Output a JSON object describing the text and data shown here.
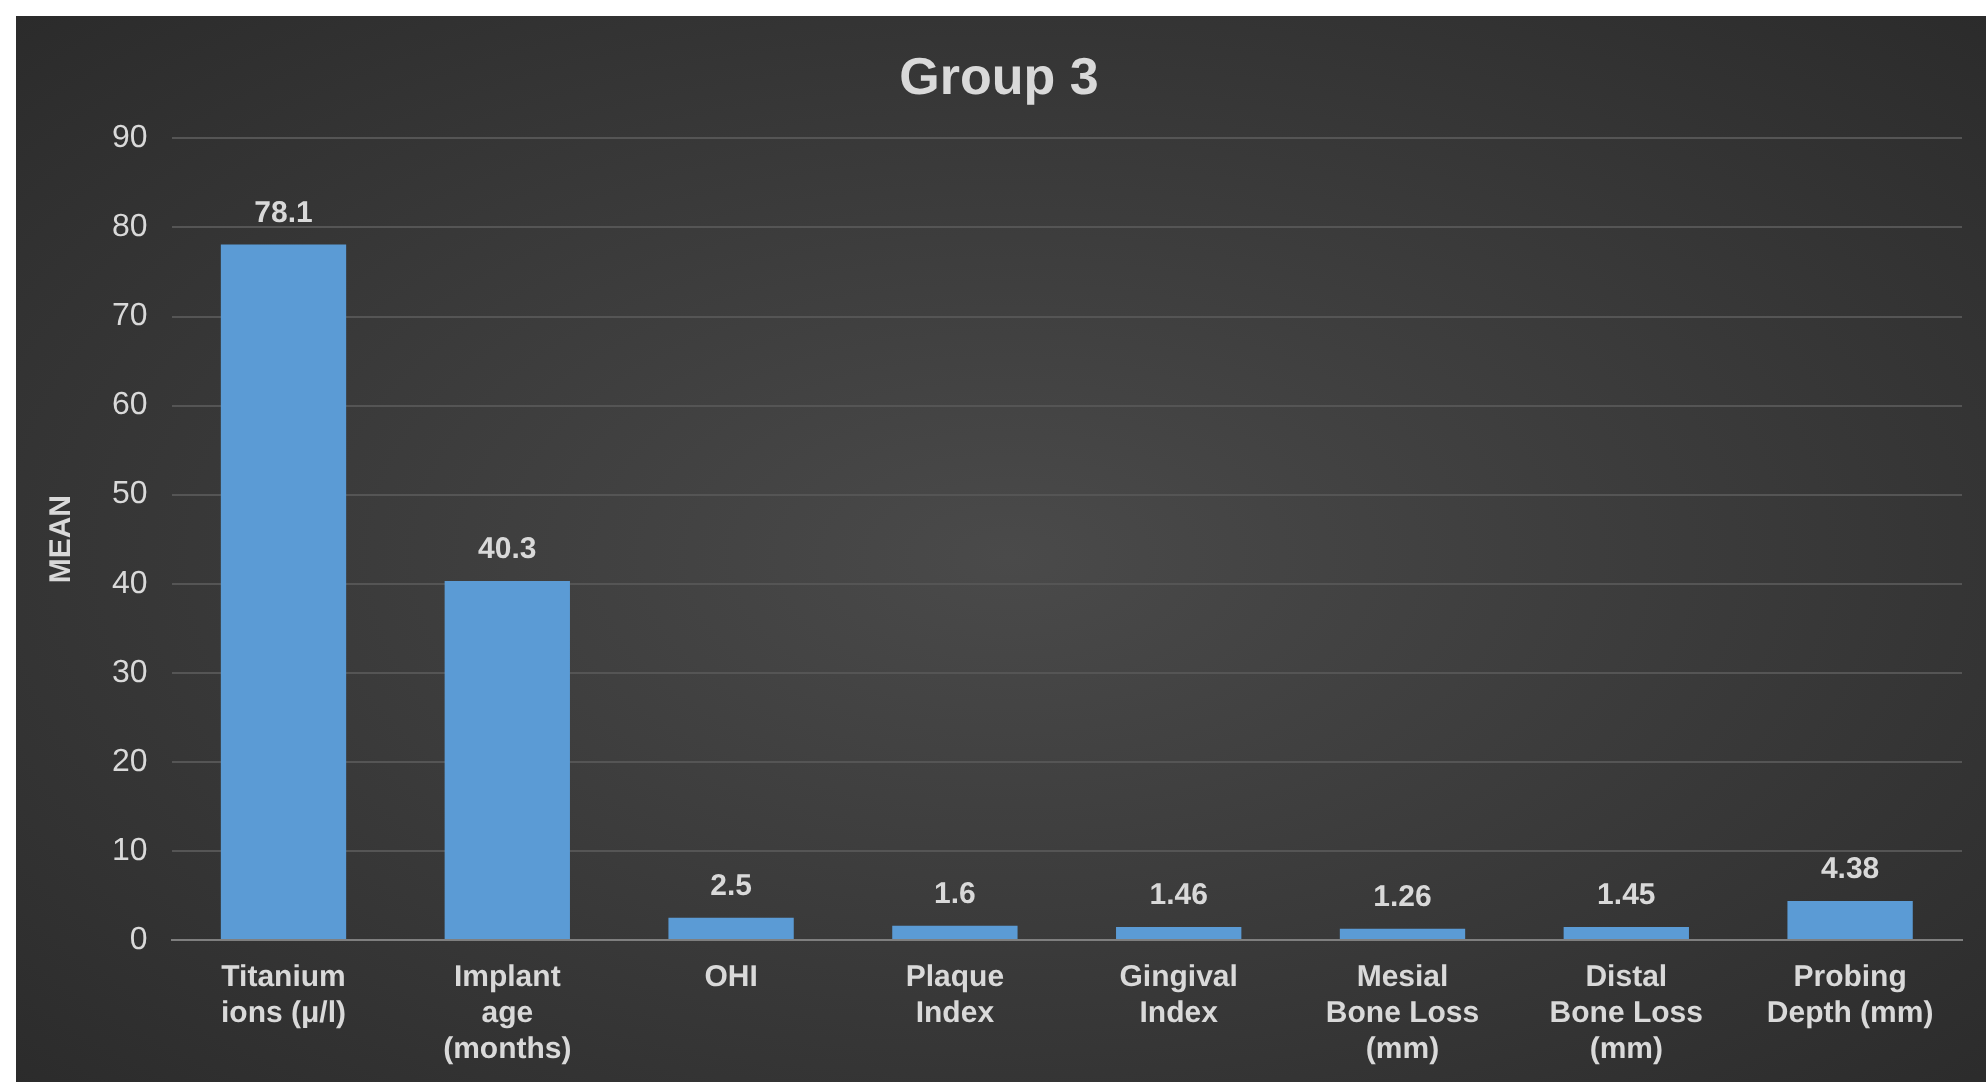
{
  "chart_data": {
    "type": "bar",
    "title": "Group 3",
    "ylabel": "MEAN",
    "categories": [
      "Titanium ions (μ/l)",
      "Implant age (months)",
      "OHI",
      "Plaque Index",
      "Gingival Index",
      "Mesial Bone Loss (mm)",
      "Distal Bone Loss (mm)",
      "Probing Depth (mm)"
    ],
    "values": [
      78.1,
      40.3,
      2.5,
      1.6,
      1.46,
      1.26,
      1.45,
      4.38
    ],
    "color": "#5b9bd5",
    "ylim": [
      0,
      90
    ],
    "yticks": [
      0,
      10,
      20,
      30,
      40,
      50,
      60,
      70,
      80,
      90
    ],
    "grid": "y",
    "legend": false,
    "data_labels": true
  }
}
